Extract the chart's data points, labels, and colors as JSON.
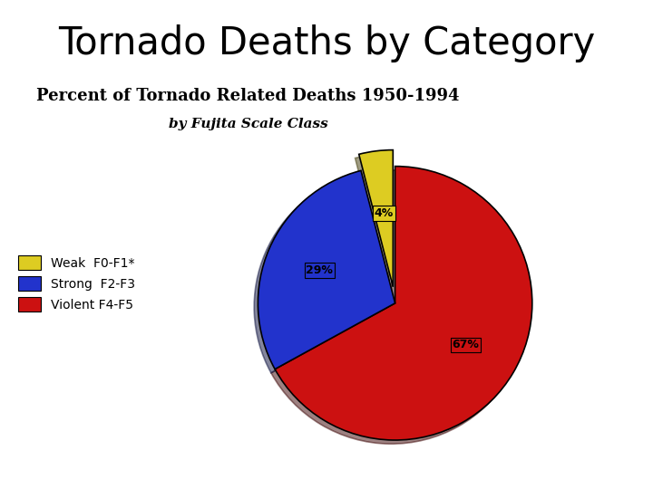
{
  "title": "Tornado Deaths by Category",
  "subtitle1": "Percent of Tornado Related Deaths 1950-1994",
  "subtitle2": "by Fujita Scale Class",
  "slices": [
    67,
    29,
    4
  ],
  "pct_labels": [
    "67%",
    "29%",
    "4%"
  ],
  "colors": [
    "#cc1111",
    "#2233cc",
    "#ddcc22"
  ],
  "legend_labels": [
    "Weak  F0-F1*",
    "Strong  F2-F3",
    "Violent F4-F5"
  ],
  "legend_colors": [
    "#ddcc22",
    "#2233cc",
    "#cc1111"
  ],
  "startangle": 90,
  "background_color": "#ffffff",
  "title_fontsize": 30,
  "subtitle1_fontsize": 13,
  "subtitle2_fontsize": 11
}
